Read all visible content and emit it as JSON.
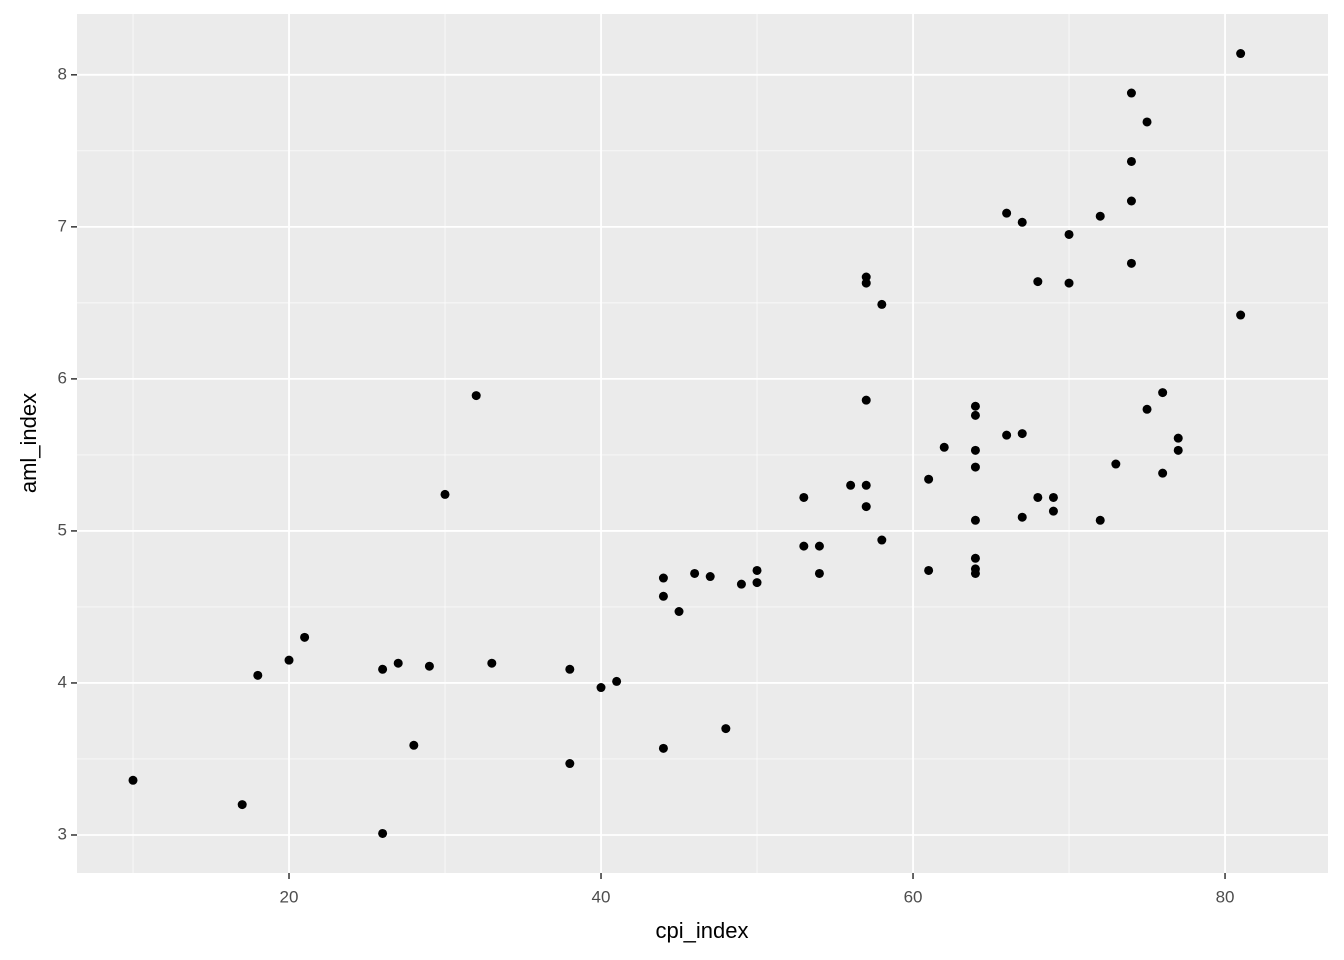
{
  "chart_data": {
    "type": "scatter",
    "xlabel": "cpi_index",
    "ylabel": "aml_index",
    "color": "#000000",
    "grid": true,
    "xlim": [
      6.41,
      86.6
    ],
    "ylim": [
      2.75,
      8.4
    ],
    "xticks": [
      20,
      40,
      60,
      80
    ],
    "yticks": [
      3,
      4,
      5,
      6,
      7,
      8
    ],
    "x": [
      10,
      17,
      18,
      20,
      21,
      26,
      26,
      27,
      28,
      29,
      30,
      32,
      33,
      38,
      38,
      40,
      41,
      44,
      44,
      44,
      45,
      46,
      47,
      48,
      49,
      50,
      50,
      53,
      53,
      54,
      54,
      56,
      57,
      57,
      57,
      57,
      57,
      58,
      58,
      61,
      61,
      62,
      64,
      64,
      64,
      64,
      64,
      64,
      64,
      64,
      66,
      66,
      67,
      67,
      67,
      68,
      68,
      69,
      69,
      70,
      70,
      72,
      72,
      73,
      74,
      74,
      74,
      74,
      75,
      75,
      76,
      76,
      77,
      77,
      81,
      81
    ],
    "values": [
      3.36,
      3.2,
      4.05,
      4.15,
      4.3,
      3.01,
      4.09,
      4.13,
      3.59,
      4.11,
      5.24,
      5.89,
      4.13,
      3.47,
      4.09,
      3.97,
      4.01,
      4.69,
      4.57,
      3.57,
      4.47,
      4.72,
      4.7,
      3.7,
      4.65,
      4.74,
      4.66,
      5.22,
      4.9,
      4.9,
      4.72,
      5.3,
      6.67,
      6.63,
      5.86,
      5.3,
      5.16,
      6.49,
      4.94,
      5.34,
      4.74,
      5.55,
      5.82,
      5.76,
      5.53,
      5.42,
      5.07,
      4.82,
      4.75,
      4.72,
      7.09,
      5.63,
      7.03,
      5.64,
      5.09,
      6.64,
      5.22,
      5.22,
      5.13,
      6.95,
      6.63,
      7.07,
      5.07,
      5.44,
      7.88,
      7.43,
      7.17,
      6.76,
      7.69,
      5.8,
      5.91,
      5.38,
      5.61,
      5.53,
      8.14,
      6.42
    ]
  }
}
